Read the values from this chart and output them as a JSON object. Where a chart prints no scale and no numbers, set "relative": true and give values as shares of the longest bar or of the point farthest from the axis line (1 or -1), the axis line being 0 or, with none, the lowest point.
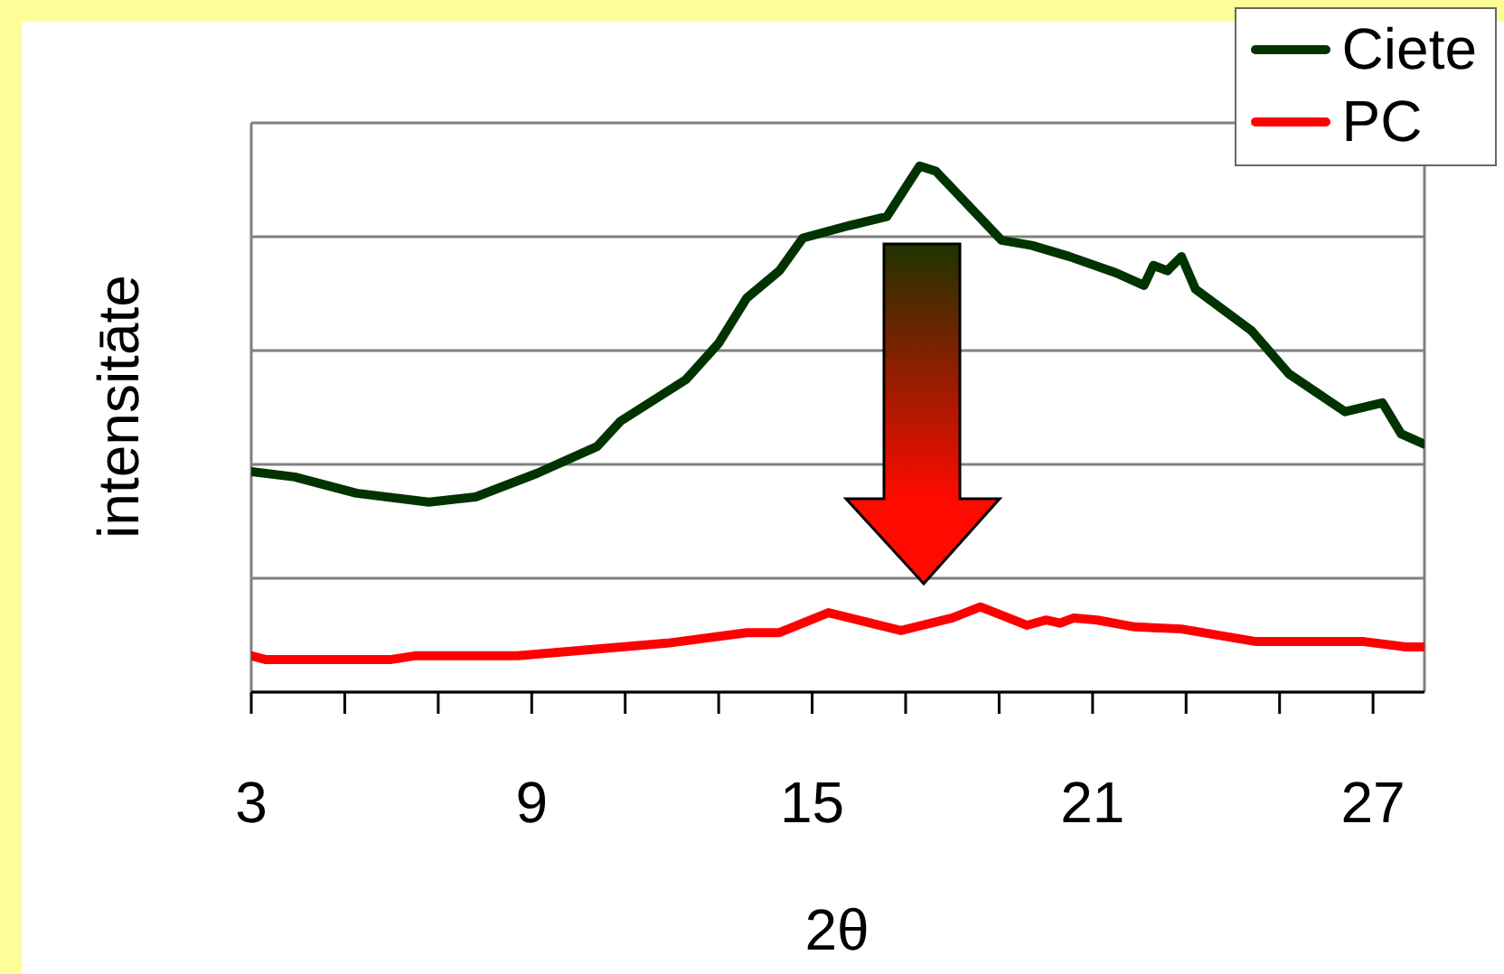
{
  "chart_data": {
    "type": "line",
    "xlabel": "2θ",
    "ylabel": "intensitāte",
    "relative": true,
    "xlim": [
      3,
      28.1
    ],
    "xticks": [
      3,
      {
        "value": 5,
        "label": null
      },
      {
        "value": 7,
        "label": null
      },
      9,
      {
        "value": 11,
        "label": null
      },
      {
        "value": 13,
        "label": null
      },
      15,
      {
        "value": 17,
        "label": null
      },
      {
        "value": 19,
        "label": null
      },
      21,
      {
        "value": 23,
        "label": null
      },
      {
        "value": 25,
        "label": null
      },
      27
    ],
    "grid": "y",
    "legend": "top right",
    "line_style": "solid",
    "marker": "none",
    "series": [
      {
        "name": "Ciete",
        "color": "#003300",
        "x": [
          3,
          3.93,
          5.25,
          6.8,
          7.8,
          9.12,
          10.4,
          10.9,
          12.3,
          13.0,
          13.6,
          14.3,
          14.8,
          15.8,
          16.6,
          17.1,
          17.3,
          17.65,
          19.05,
          19.7,
          20.5,
          21.5,
          22.1,
          22.3,
          22.6,
          22.9,
          23.2,
          24.4,
          25.2,
          26.4,
          27.2,
          27.6,
          28.1
        ],
        "values": [
          0.419,
          0.409,
          0.378,
          0.361,
          0.371,
          0.416,
          0.467,
          0.515,
          0.594,
          0.663,
          0.749,
          0.801,
          0.863,
          0.887,
          0.904,
          0.973,
          1.0,
          0.99,
          0.859,
          0.849,
          0.828,
          0.797,
          0.773,
          0.811,
          0.801,
          0.828,
          0.766,
          0.687,
          0.605,
          0.533,
          0.55,
          0.491,
          0.471
        ]
      },
      {
        "name": "PC",
        "color": "#ff0000",
        "x": [
          3,
          3.3,
          6.0,
          6.5,
          8.7,
          11.9,
          13.6,
          14.3,
          15.35,
          16.9,
          18.0,
          18.6,
          19.6,
          20.0,
          20.3,
          20.6,
          21.1,
          21.9,
          22.9,
          24.5,
          26.8,
          27.7,
          28.1
        ],
        "values": [
          0.069,
          0.062,
          0.062,
          0.069,
          0.069,
          0.093,
          0.113,
          0.113,
          0.151,
          0.117,
          0.141,
          0.162,
          0.127,
          0.137,
          0.131,
          0.141,
          0.137,
          0.124,
          0.12,
          0.096,
          0.096,
          0.086,
          0.086
        ]
      }
    ]
  }
}
